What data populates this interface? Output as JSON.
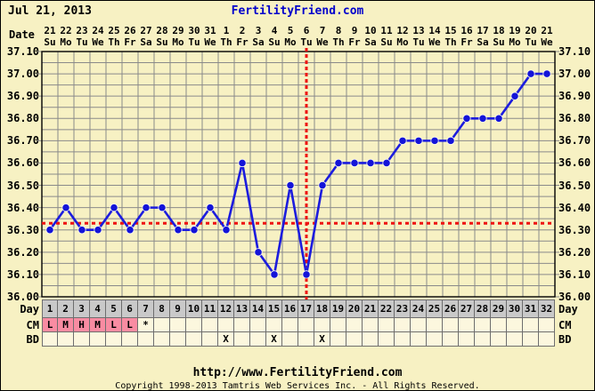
{
  "header": {
    "date_text": "Jul 21, 2013",
    "site_link": "FertilityFriend.com"
  },
  "labels": {
    "date_axis": "Date",
    "day_row": "Day",
    "cm_row": "CM",
    "bd_row": "BD"
  },
  "colors": {
    "background": "#F7F1C3",
    "cell_background": "#FCF7DE",
    "day_row_gray": "#C9C9C9",
    "cm_pink": "#F98CA2",
    "grid_gray": "#8a8a8a",
    "border_black": "#000000",
    "line_blue": "#1C1CDE",
    "dot_blue": "#1414D8",
    "red": "#EE1111",
    "site_blue": "#0000CC"
  },
  "chart_data": {
    "type": "line",
    "title": "Basal body temperature chart (FertilityFriend)",
    "x_dates": [
      "21",
      "22",
      "23",
      "24",
      "25",
      "26",
      "27",
      "28",
      "29",
      "30",
      "31",
      "1",
      "2",
      "3",
      "4",
      "5",
      "6",
      "7",
      "8",
      "9",
      "10",
      "11",
      "12",
      "13",
      "14",
      "15",
      "16",
      "17",
      "18",
      "19",
      "20",
      "21"
    ],
    "x_weekdays": [
      "Su",
      "Mo",
      "Tu",
      "We",
      "Th",
      "Fr",
      "Sa",
      "Su",
      "Mo",
      "Tu",
      "We",
      "Th",
      "Fr",
      "Sa",
      "Su",
      "Mo",
      "Tu",
      "We",
      "Th",
      "Fr",
      "Sa",
      "Su",
      "Mo",
      "Tu",
      "We",
      "Th",
      "Fr",
      "Sa",
      "Su",
      "Mo",
      "Tu",
      "We"
    ],
    "cycle_days": [
      1,
      2,
      3,
      4,
      5,
      6,
      7,
      8,
      9,
      10,
      11,
      12,
      13,
      14,
      15,
      16,
      17,
      18,
      19,
      20,
      21,
      22,
      23,
      24,
      25,
      26,
      27,
      28,
      29,
      30,
      31,
      32
    ],
    "temps": [
      36.3,
      36.4,
      36.3,
      36.3,
      36.4,
      36.3,
      36.4,
      36.4,
      36.3,
      36.3,
      36.4,
      36.3,
      36.6,
      36.2,
      36.1,
      36.5,
      36.1,
      36.5,
      36.6,
      36.6,
      36.6,
      36.6,
      36.7,
      36.7,
      36.7,
      36.7,
      36.8,
      36.8,
      36.8,
      36.9,
      37.0,
      37.0
    ],
    "ylim": [
      36.0,
      37.1
    ],
    "grid_step": 0.05,
    "label_step": 0.1,
    "y_tick_labels": [
      "37.10",
      "37.00",
      "36.90",
      "36.80",
      "36.70",
      "36.60",
      "36.50",
      "36.40",
      "36.30",
      "36.20",
      "36.10",
      "36.00"
    ],
    "coverline_temp": 36.33,
    "ovulation_day": 17,
    "grid": true,
    "legend": "none"
  },
  "table": {
    "day_values": [
      "1",
      "2",
      "3",
      "4",
      "5",
      "6",
      "7",
      "8",
      "9",
      "10",
      "11",
      "12",
      "13",
      "14",
      "15",
      "16",
      "17",
      "18",
      "19",
      "20",
      "21",
      "22",
      "23",
      "24",
      "25",
      "26",
      "27",
      "28",
      "29",
      "30",
      "31",
      "32"
    ],
    "cm_values": [
      "L",
      "M",
      "H",
      "M",
      "L",
      "L",
      "*",
      "",
      "",
      "",
      "",
      "",
      "",
      "",
      "",
      "",
      "",
      "",
      "",
      "",
      "",
      "",
      "",
      "",
      "",
      "",
      "",
      "",
      "",
      "",
      "",
      ""
    ],
    "cm_highlight_days": [
      1,
      2,
      3,
      4,
      5,
      6
    ],
    "bd_marks_days": [
      12,
      15,
      18
    ],
    "bd_symbol": "X"
  },
  "footer": {
    "url": "http://www.FertilityFriend.com",
    "copyright": "Copyright 1998-2013 Tamtris Web Services Inc. - All Rights Reserved."
  }
}
